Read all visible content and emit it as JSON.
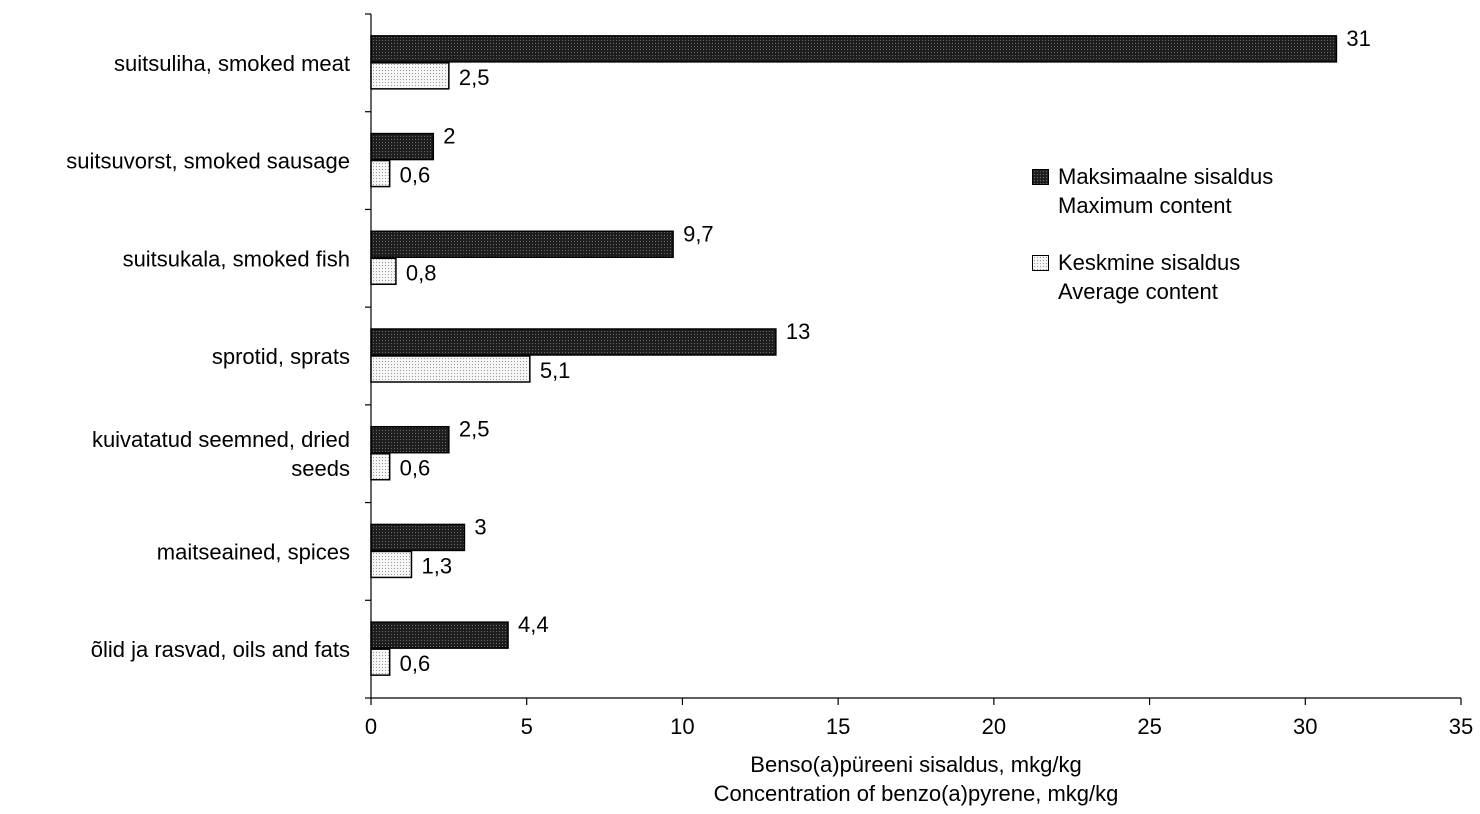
{
  "chart_data": {
    "type": "bar",
    "orientation": "horizontal",
    "categories": [
      [
        "suitsuliha, smoked meat"
      ],
      [
        "suitsuvorst, smoked sausage"
      ],
      [
        "suitsukala, smoked fish"
      ],
      [
        "sprotid, sprats"
      ],
      [
        "kuivatatud seemned, dried",
        "seeds"
      ],
      [
        "maitseained, spices"
      ],
      [
        "õlid ja rasvad, oils and fats"
      ]
    ],
    "series": [
      {
        "name": [
          "Maksimaalne sisaldus",
          "Maximum content"
        ],
        "values": [
          31,
          2,
          9.7,
          13,
          2.5,
          3,
          4.4
        ],
        "labels": [
          "31",
          "2",
          "9,7",
          "13",
          "2,5",
          "3",
          "4,4"
        ],
        "color": "#1e1e1e"
      },
      {
        "name": [
          "Keskmine sisaldus",
          "Average content"
        ],
        "values": [
          2.5,
          0.6,
          0.8,
          5.1,
          0.6,
          1.3,
          0.6
        ],
        "labels": [
          "2,5",
          "0,6",
          "0,8",
          "5,1",
          "0,6",
          "1,3",
          "0,6"
        ],
        "color": "#f6f6f6"
      }
    ],
    "xlim": [
      0,
      35
    ],
    "xticks": [
      0,
      5,
      10,
      15,
      20,
      25,
      30,
      35
    ],
    "xlabel": [
      "Benso(a)püreeni sisaldus, mkg/kg",
      "Concentration of benzo(a)pyrene, mkg/kg"
    ],
    "ylabel": "",
    "title": "",
    "legend_position": "right",
    "grid": false
  }
}
